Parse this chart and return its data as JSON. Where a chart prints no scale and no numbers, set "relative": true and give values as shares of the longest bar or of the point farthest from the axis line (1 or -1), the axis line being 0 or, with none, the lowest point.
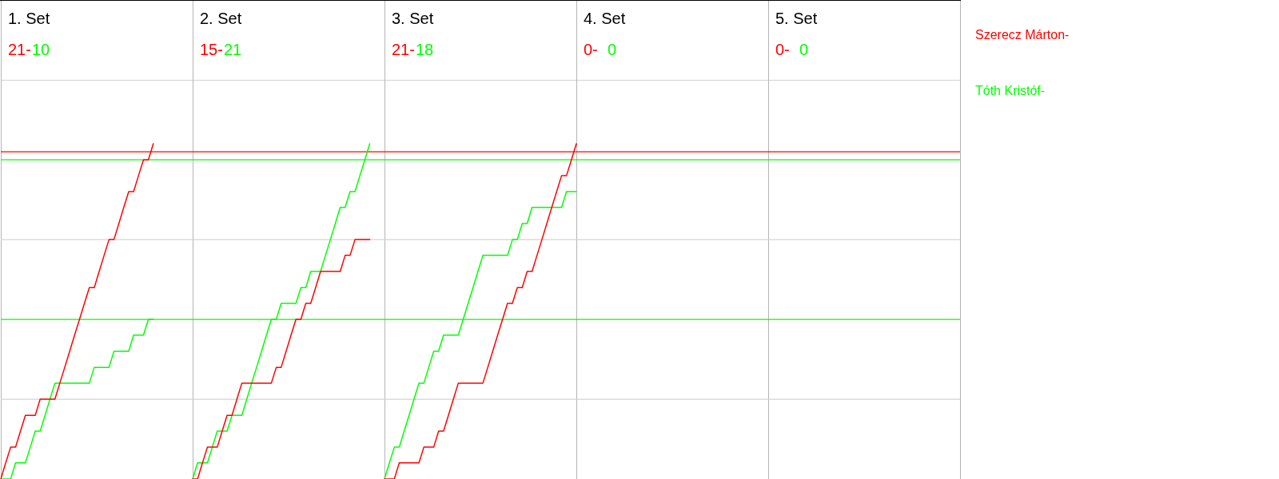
{
  "chart_data": {
    "type": "line",
    "categories": [
      null,
      null,
      null,
      null,
      null,
      null,
      null,
      null,
      null,
      null,
      null,
      null,
      null,
      null,
      null,
      null,
      null,
      null,
      null,
      null,
      null,
      null,
      null,
      null,
      null,
      null,
      null,
      null,
      null,
      null,
      null,
      null,
      null,
      null,
      null,
      null,
      null,
      null,
      null,
      null,
      null,
      null,
      null,
      null,
      null,
      null,
      null,
      null,
      null,
      null,
      null,
      null,
      null,
      null,
      null,
      null,
      null,
      null,
      null,
      null,
      null,
      null,
      null,
      null,
      null,
      null,
      null,
      null,
      null,
      null,
      null,
      null,
      null,
      null,
      null,
      null,
      null,
      null,
      null,
      null,
      null,
      null,
      null,
      null,
      null,
      null,
      null,
      null,
      null,
      null,
      null,
      null,
      null,
      null,
      null,
      null,
      null,
      null,
      null,
      null,
      null,
      null,
      null,
      null,
      null,
      null,
      null,
      null,
      null,
      null,
      null,
      null,
      null,
      null,
      null,
      null,
      null,
      null,
      null,
      null,
      null,
      null,
      null,
      null,
      null,
      null,
      null,
      null,
      null,
      null,
      null,
      null,
      null,
      null,
      null,
      null,
      null,
      null,
      null,
      null,
      null,
      null,
      null,
      null,
      null,
      null,
      null,
      null,
      null,
      null,
      null,
      null,
      null,
      null,
      null,
      null,
      null,
      null,
      null,
      null,
      null,
      null,
      null,
      null,
      null,
      null,
      null,
      null,
      null,
      null,
      null,
      null,
      null,
      null,
      null,
      null,
      null,
      null,
      null,
      null,
      null,
      null,
      null,
      null,
      null,
      null,
      null,
      null,
      null,
      null,
      null,
      null,
      null,
      null,
      null,
      null
    ],
    "series": [
      {
        "name": "Szerecz Márton-",
        "color": "#ff0000",
        "values": [
          0,
          0.048,
          0.095,
          0.095,
          0.143,
          0.19,
          0.19,
          0.19,
          0.238,
          0.238,
          0.238,
          0.238,
          0.286,
          0.333,
          0.381,
          0.429,
          0.476,
          0.524,
          0.571,
          0.571,
          0.619,
          0.667,
          0.714,
          0.714,
          0.762,
          0.81,
          0.857,
          0.857,
          0.905,
          0.952,
          0.952,
          1,
          null,
          null,
          null,
          null,
          null,
          null,
          null,
          null,
          null,
          null,
          null,
          null,
          null,
          null,
          null,
          null,
          null,
          null,
          null,
          null,
          null,
          null,
          null,
          null,
          null,
          null,
          null,
          null,
          null,
          null,
          null,
          null,
          null,
          null,
          null,
          null,
          null,
          null,
          null,
          null,
          null,
          null,
          null,
          null,
          null,
          null,
          null,
          null,
          null,
          null,
          null,
          null,
          null,
          null,
          null,
          null,
          null,
          null,
          null,
          null,
          null,
          null,
          null,
          null,
          null,
          null,
          null,
          null,
          null,
          null,
          null,
          null,
          null,
          null,
          null,
          null,
          null,
          null,
          null,
          null,
          null,
          null,
          null,
          null,
          null,
          null,
          null,
          null,
          null,
          null,
          null,
          null,
          null,
          null,
          null,
          null,
          null,
          null,
          null,
          null,
          null,
          null,
          null,
          null,
          null,
          null,
          null,
          null,
          null,
          null,
          null,
          null,
          null,
          null,
          null,
          null,
          null,
          null,
          null,
          null,
          null,
          null,
          null,
          null,
          null,
          null,
          null,
          null,
          null,
          null,
          null,
          null,
          null,
          null,
          null,
          null,
          null,
          null,
          null,
          null,
          null,
          null,
          null,
          null,
          null,
          null,
          null,
          null,
          null,
          null,
          null,
          null,
          null,
          null,
          null,
          null,
          null,
          null,
          null,
          null,
          null,
          null,
          null,
          null
        ]
      },
      {
        "color": "#ff0000",
        "values": [
          null,
          null,
          null,
          null,
          null,
          null,
          null,
          null,
          null,
          null,
          null,
          null,
          null,
          null,
          null,
          null,
          null,
          null,
          null,
          null,
          null,
          null,
          null,
          null,
          null,
          null,
          null,
          null,
          null,
          null,
          null,
          null,
          null,
          null,
          null,
          null,
          null,
          null,
          null,
          0,
          0,
          0.048,
          0.095,
          0.095,
          0.095,
          0.143,
          0.19,
          0.19,
          0.238,
          0.286,
          0.286,
          0.286,
          0.286,
          0.286,
          0.286,
          0.286,
          0.333,
          0.333,
          0.381,
          0.429,
          0.476,
          0.476,
          0.524,
          0.524,
          0.571,
          0.619,
          0.619,
          0.619,
          0.619,
          0.619,
          0.667,
          0.667,
          0.714,
          0.714,
          0.714,
          0.714,
          null,
          null,
          null,
          null,
          null,
          null,
          null,
          null,
          null,
          null,
          null,
          null,
          null,
          null,
          null,
          null,
          null,
          null,
          null,
          null,
          null,
          null,
          null,
          null,
          null,
          null,
          null,
          null,
          null,
          null,
          null,
          null,
          null,
          null,
          null,
          null,
          null,
          null,
          null,
          null,
          null,
          null,
          null,
          null,
          null,
          null,
          null,
          null,
          null,
          null,
          null,
          null,
          null,
          null,
          null,
          null,
          null,
          null,
          null,
          null,
          null,
          null,
          null,
          null,
          null,
          null,
          null,
          null,
          null,
          null,
          null,
          null,
          null,
          null,
          null,
          null,
          null,
          null,
          null,
          null,
          null,
          null,
          null,
          null,
          null,
          null,
          null,
          null,
          null,
          null,
          null,
          null,
          null,
          null,
          null,
          null,
          null,
          null,
          null,
          null,
          null,
          null,
          null,
          null,
          null,
          null,
          null,
          null,
          null,
          null,
          null,
          null,
          null,
          null,
          null,
          null,
          null,
          null,
          null,
          null
        ]
      },
      {
        "color": "#ff0000",
        "values": [
          null,
          null,
          null,
          null,
          null,
          null,
          null,
          null,
          null,
          null,
          null,
          null,
          null,
          null,
          null,
          null,
          null,
          null,
          null,
          null,
          null,
          null,
          null,
          null,
          null,
          null,
          null,
          null,
          null,
          null,
          null,
          null,
          null,
          null,
          null,
          null,
          null,
          null,
          null,
          null,
          null,
          null,
          null,
          null,
          null,
          null,
          null,
          null,
          null,
          null,
          null,
          null,
          null,
          null,
          null,
          null,
          null,
          null,
          null,
          null,
          null,
          null,
          null,
          null,
          null,
          null,
          null,
          null,
          null,
          null,
          null,
          null,
          null,
          null,
          null,
          null,
          null,
          null,
          0,
          0,
          0,
          0.048,
          0.048,
          0.048,
          0.048,
          0.048,
          0.095,
          0.095,
          0.095,
          0.143,
          0.143,
          0.19,
          0.238,
          0.286,
          0.286,
          0.286,
          0.286,
          0.286,
          0.286,
          0.333,
          0.381,
          0.429,
          0.476,
          0.524,
          0.524,
          0.571,
          0.571,
          0.619,
          0.619,
          0.667,
          0.714,
          0.762,
          0.81,
          0.857,
          0.905,
          0.905,
          0.952,
          1,
          null,
          null,
          null,
          null,
          null,
          null,
          null,
          null,
          null,
          null,
          null,
          null,
          null,
          null,
          null,
          null,
          null,
          null,
          null,
          null,
          null,
          null,
          null,
          null,
          null,
          null,
          null,
          null,
          null,
          null,
          null,
          null,
          null,
          null,
          null,
          null,
          null,
          null,
          null,
          null,
          null,
          null,
          null,
          null,
          null,
          null,
          null,
          null,
          null,
          null,
          null,
          null,
          null,
          null,
          null,
          null,
          null,
          null,
          null,
          null,
          null,
          null,
          null,
          null,
          null,
          null,
          null,
          null,
          null,
          null,
          null,
          null,
          null,
          null,
          null,
          null,
          null,
          null
        ]
      },
      {
        "name": "Tóth Kristóf-",
        "color": "#00ff00",
        "values": [
          0,
          0,
          0,
          0.048,
          0.048,
          0.048,
          0.095,
          0.143,
          0.143,
          0.19,
          0.238,
          0.286,
          0.286,
          0.286,
          0.286,
          0.286,
          0.286,
          0.286,
          0.286,
          0.333,
          0.333,
          0.333,
          0.333,
          0.381,
          0.381,
          0.381,
          0.381,
          0.429,
          0.429,
          0.429,
          0.476,
          0.476,
          null,
          null,
          null,
          null,
          null,
          null,
          null,
          null,
          null,
          null,
          null,
          null,
          null,
          null,
          null,
          null,
          null,
          null,
          null,
          null,
          null,
          null,
          null,
          null,
          null,
          null,
          null,
          null,
          null,
          null,
          null,
          null,
          null,
          null,
          null,
          null,
          null,
          null,
          null,
          null,
          null,
          null,
          null,
          null,
          null,
          null,
          null,
          null,
          null,
          null,
          null,
          null,
          null,
          null,
          null,
          null,
          null,
          null,
          null,
          null,
          null,
          null,
          null,
          null,
          null,
          null,
          null,
          null,
          null,
          null,
          null,
          null,
          null,
          null,
          null,
          null,
          null,
          null,
          null,
          null,
          null,
          null,
          null,
          null,
          null,
          null,
          null,
          null,
          null,
          null,
          null,
          null,
          null,
          null,
          null,
          null,
          null,
          null,
          null,
          null,
          null,
          null,
          null,
          null,
          null,
          null,
          null,
          null,
          null,
          null,
          null,
          null,
          null,
          null,
          null,
          null,
          null,
          null,
          null,
          null,
          null,
          null,
          null,
          null,
          null,
          null,
          null,
          null,
          null,
          null,
          null,
          null,
          null,
          null,
          null,
          null,
          null,
          null,
          null,
          null,
          null,
          null,
          null,
          null,
          null,
          null,
          null,
          null,
          null,
          null,
          null,
          null,
          null,
          null,
          null,
          null,
          null,
          null,
          null,
          null,
          null,
          null,
          null,
          null
        ]
      },
      {
        "color": "#00ff00",
        "values": [
          null,
          null,
          null,
          null,
          null,
          null,
          null,
          null,
          null,
          null,
          null,
          null,
          null,
          null,
          null,
          null,
          null,
          null,
          null,
          null,
          null,
          null,
          null,
          null,
          null,
          null,
          null,
          null,
          null,
          null,
          null,
          null,
          null,
          null,
          null,
          null,
          null,
          null,
          null,
          0,
          0.048,
          0.048,
          0.048,
          0.095,
          0.143,
          0.143,
          0.143,
          0.19,
          0.19,
          0.19,
          0.238,
          0.286,
          0.333,
          0.381,
          0.429,
          0.476,
          0.476,
          0.524,
          0.524,
          0.524,
          0.524,
          0.571,
          0.571,
          0.619,
          0.619,
          0.619,
          0.667,
          0.714,
          0.762,
          0.81,
          0.81,
          0.857,
          0.857,
          0.905,
          0.952,
          1,
          null,
          null,
          null,
          null,
          null,
          null,
          null,
          null,
          null,
          null,
          null,
          null,
          null,
          null,
          null,
          null,
          null,
          null,
          null,
          null,
          null,
          null,
          null,
          null,
          null,
          null,
          null,
          null,
          null,
          null,
          null,
          null,
          null,
          null,
          null,
          null,
          null,
          null,
          null,
          null,
          null,
          null,
          null,
          null,
          null,
          null,
          null,
          null,
          null,
          null,
          null,
          null,
          null,
          null,
          null,
          null,
          null,
          null,
          null,
          null,
          null,
          null,
          null,
          null,
          null,
          null,
          null,
          null,
          null,
          null,
          null,
          null,
          null,
          null,
          null,
          null,
          null,
          null,
          null,
          null,
          null,
          null,
          null,
          null,
          null,
          null,
          null,
          null,
          null,
          null,
          null,
          null,
          null,
          null,
          null,
          null,
          null,
          null,
          null,
          null,
          null,
          null,
          null,
          null,
          null,
          null,
          null,
          null,
          null,
          null,
          null,
          null,
          null,
          null,
          null,
          null,
          null,
          null,
          null,
          null
        ]
      },
      {
        "color": "#00ff00",
        "values": [
          null,
          null,
          null,
          null,
          null,
          null,
          null,
          null,
          null,
          null,
          null,
          null,
          null,
          null,
          null,
          null,
          null,
          null,
          null,
          null,
          null,
          null,
          null,
          null,
          null,
          null,
          null,
          null,
          null,
          null,
          null,
          null,
          null,
          null,
          null,
          null,
          null,
          null,
          null,
          null,
          null,
          null,
          null,
          null,
          null,
          null,
          null,
          null,
          null,
          null,
          null,
          null,
          null,
          null,
          null,
          null,
          null,
          null,
          null,
          null,
          null,
          null,
          null,
          null,
          null,
          null,
          null,
          null,
          null,
          null,
          null,
          null,
          null,
          null,
          null,
          null,
          null,
          null,
          0,
          0.048,
          0.095,
          0.095,
          0.143,
          0.19,
          0.238,
          0.286,
          0.286,
          0.333,
          0.381,
          0.381,
          0.429,
          0.429,
          0.429,
          0.429,
          0.476,
          0.524,
          0.571,
          0.619,
          0.667,
          0.667,
          0.667,
          0.667,
          0.667,
          0.667,
          0.714,
          0.714,
          0.762,
          0.762,
          0.81,
          0.81,
          0.81,
          0.81,
          0.81,
          0.81,
          0.81,
          0.857,
          0.857,
          0.857,
          null,
          null,
          null,
          null,
          null,
          null,
          null,
          null,
          null,
          null,
          null,
          null,
          null,
          null,
          null,
          null,
          null,
          null,
          null,
          null,
          null,
          null,
          null,
          null,
          null,
          null,
          null,
          null,
          null,
          null,
          null,
          null,
          null,
          null,
          null,
          null,
          null,
          null,
          null,
          null,
          null,
          null,
          null,
          null,
          null,
          null,
          null,
          null,
          null,
          null,
          null,
          null,
          null,
          null,
          null,
          null,
          null,
          null,
          null,
          null,
          null,
          null,
          null,
          null,
          null,
          null,
          null,
          null,
          null,
          null,
          null,
          null,
          null,
          null,
          null,
          null,
          null,
          null
        ]
      }
    ],
    "relative": true,
    "legend": "right",
    "grid": true,
    "annotations": [
      "1. Set",
      "21-",
      "10",
      "2. Set",
      "15-",
      "21",
      "3. Set",
      "21-",
      "18",
      "4. Set",
      "0-",
      "0",
      "5. Set",
      "0-",
      "0"
    ],
    "ref_lines": [
      {
        "axis": "y",
        "value": 0.238,
        "color": "#d3d3d3"
      },
      {
        "axis": "y",
        "value": 0.714,
        "color": "#d3d3d3"
      },
      {
        "axis": "y",
        "value": 0.976,
        "color": "#ff0000"
      },
      {
        "axis": "y",
        "value": 0.952,
        "color": "#00ff00"
      },
      {
        "axis": "y",
        "value": 0.476,
        "color": "#00ff00"
      }
    ]
  }
}
